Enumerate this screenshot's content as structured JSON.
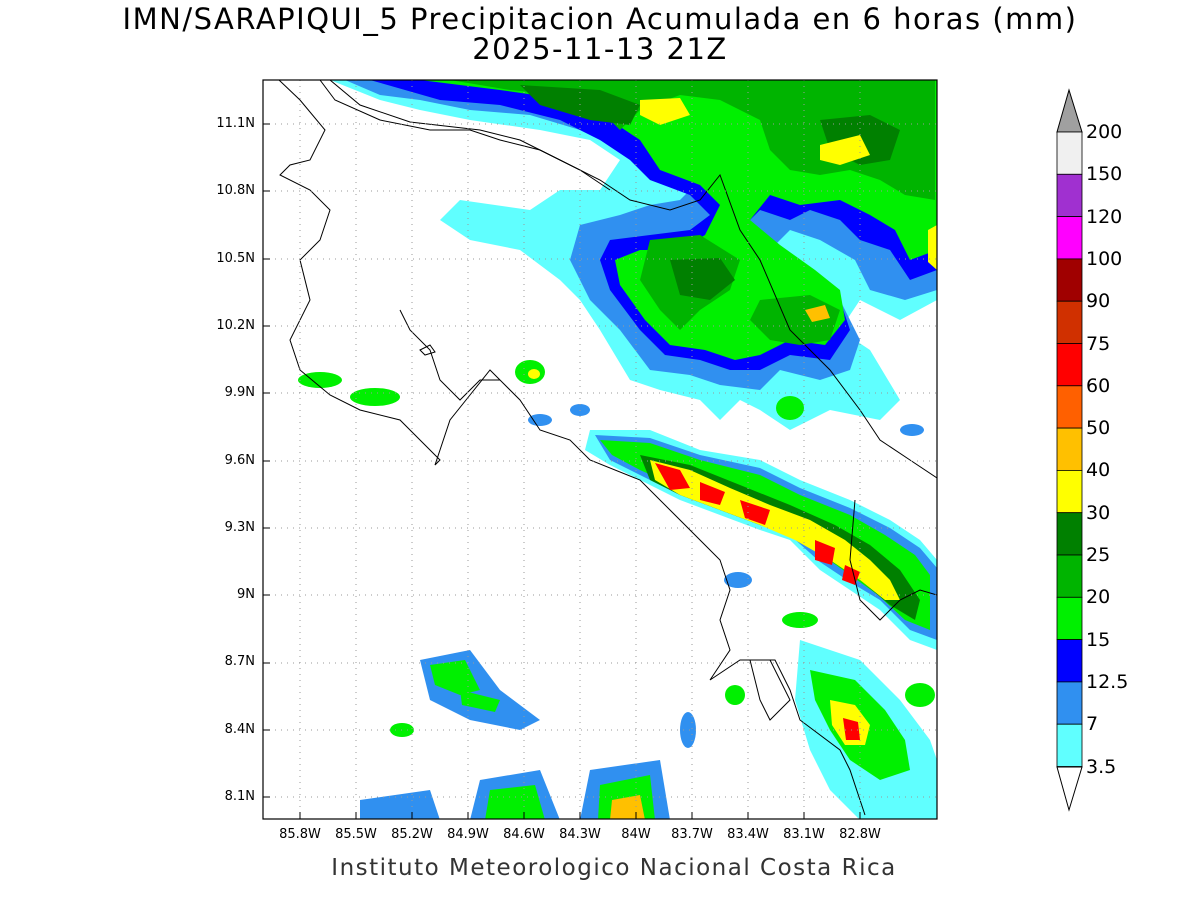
{
  "header": {
    "title": "IMN/SARAPIQUI_5 Precipitacion Acumulada en 6 horas (mm)",
    "subtitle": "2025-11-13 21Z"
  },
  "footer": {
    "credit": "Instituto Meteorologico Nacional Costa Rica"
  },
  "map": {
    "lat_ticks": [
      "11.1N",
      "10.8N",
      "10.5N",
      "10.2N",
      "9.9N",
      "9.6N",
      "9.3N",
      "9N",
      "8.7N",
      "8.4N",
      "8.1N"
    ],
    "lon_ticks": [
      "85.8W",
      "85.5W",
      "85.2W",
      "84.9W",
      "84.6W",
      "84.3W",
      "84W",
      "83.7W",
      "83.4W",
      "83.1W",
      "82.8W"
    ],
    "grid": "dotted",
    "background_color": "#ffffff"
  },
  "colorbar": {
    "labels": [
      "200",
      "150",
      "120",
      "100",
      "90",
      "75",
      "60",
      "50",
      "40",
      "30",
      "25",
      "20",
      "15",
      "12.5",
      "7",
      "3.5"
    ],
    "colors": [
      "#a0a0a0",
      "#f0f0f0",
      "#a030d0",
      "#ff00ff",
      "#a00000",
      "#d03000",
      "#ff0000",
      "#ff6000",
      "#ffc000",
      "#ffff00",
      "#008000",
      "#00b400",
      "#00f000",
      "#0000ff",
      "#3090f0",
      "#60ffff"
    ]
  }
}
